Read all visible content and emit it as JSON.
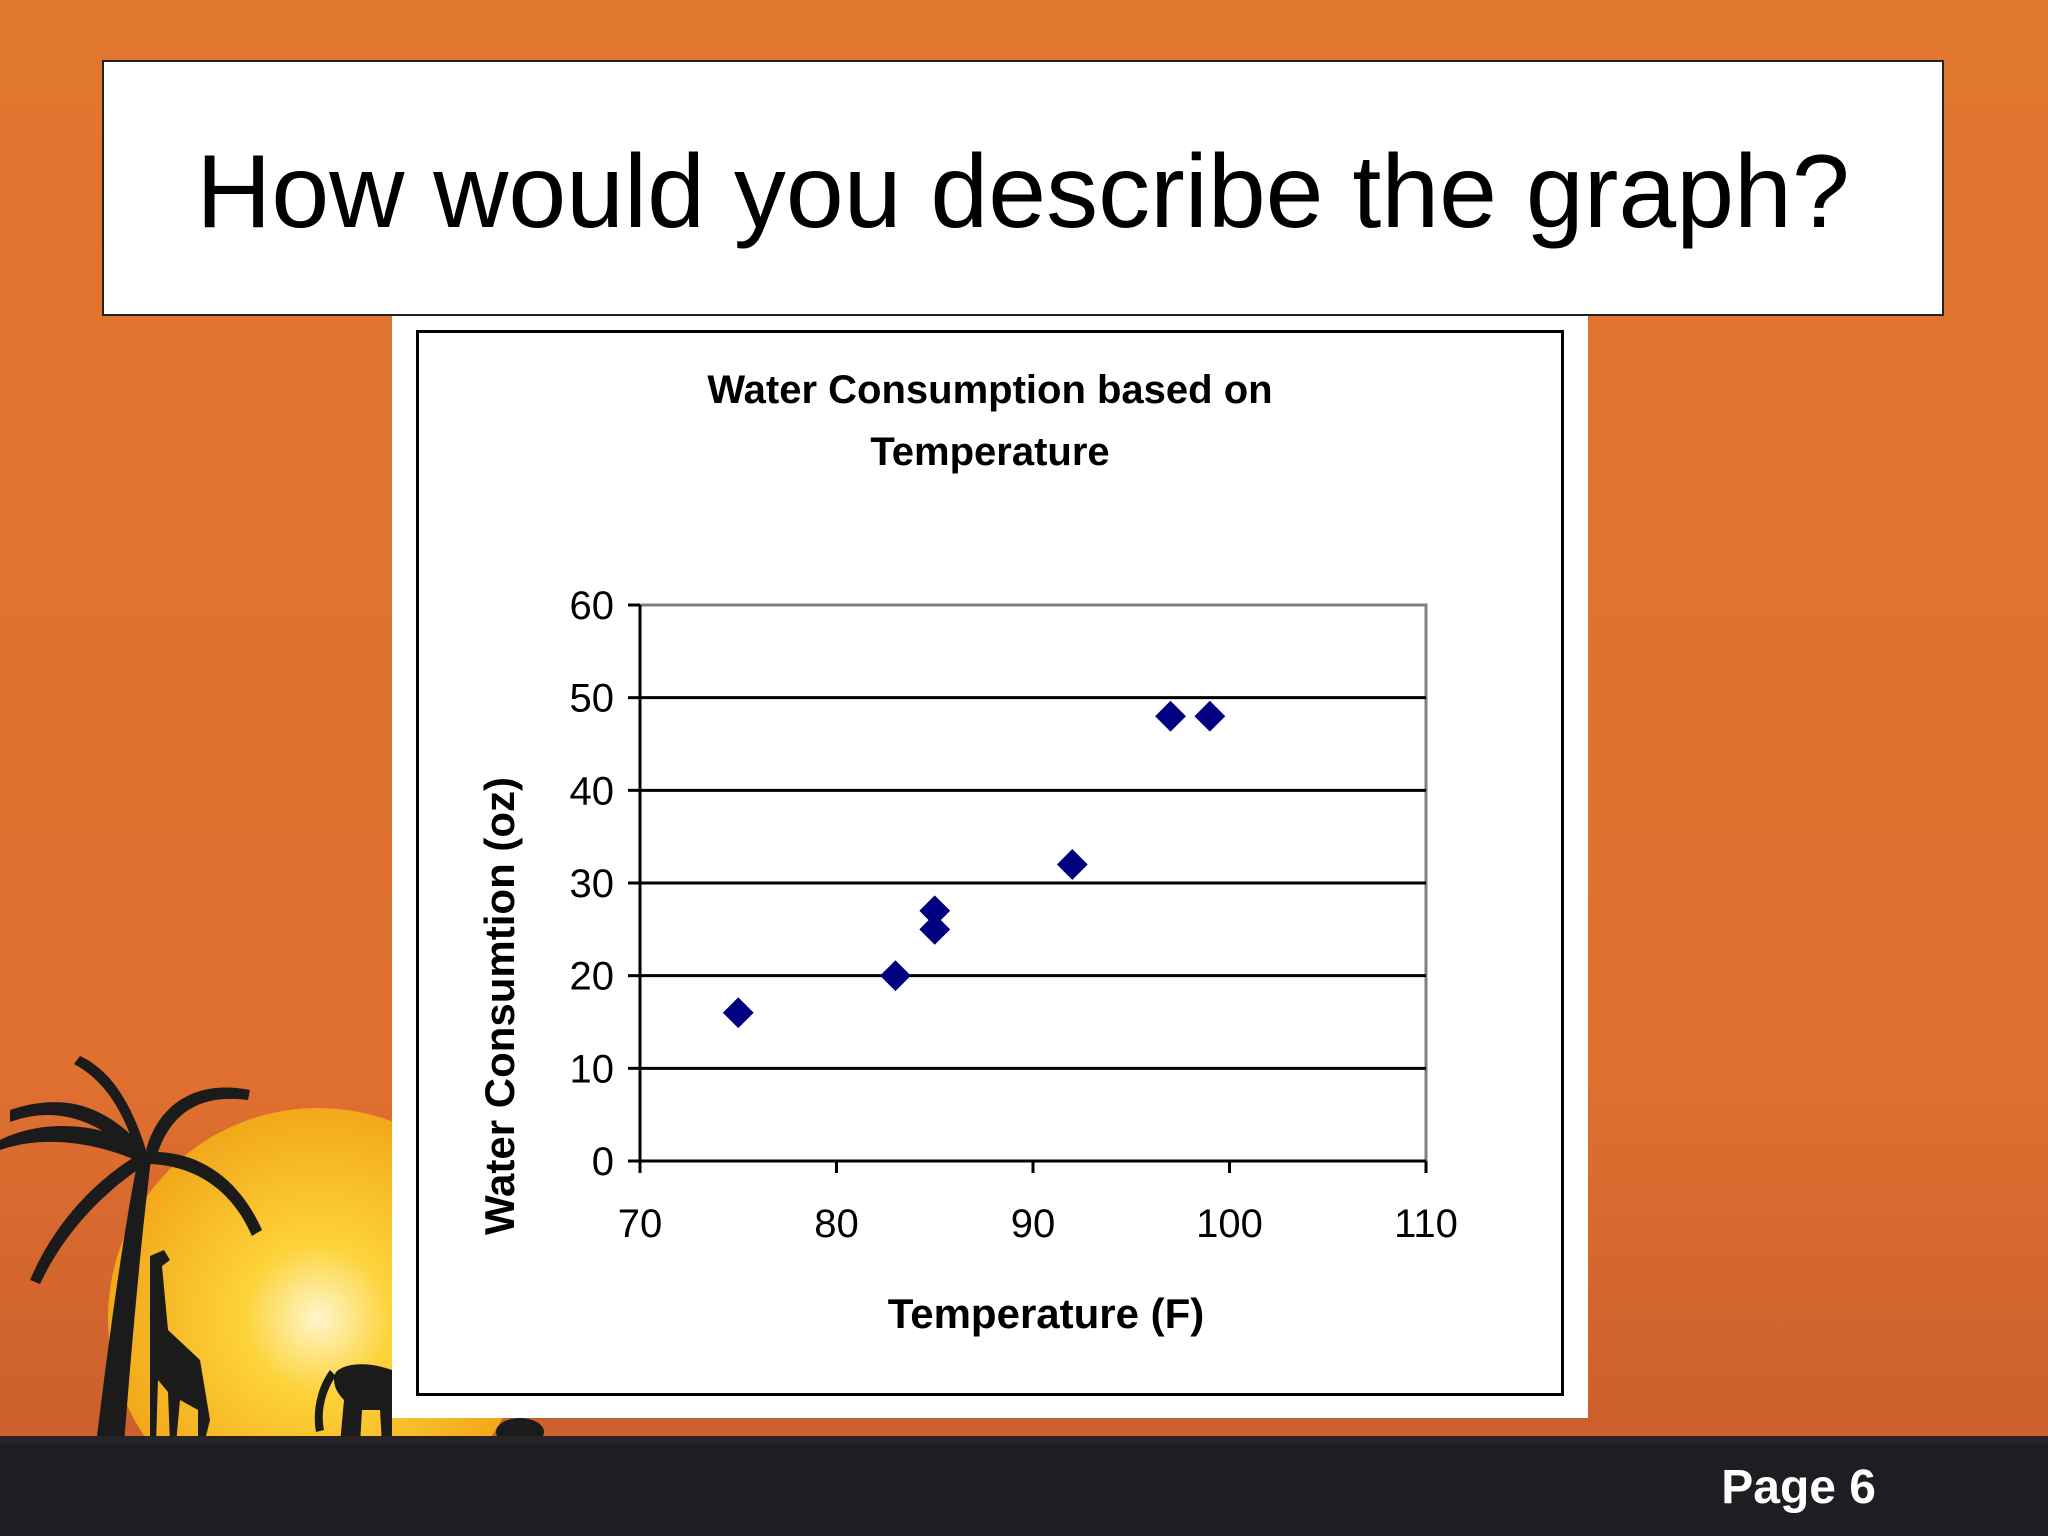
{
  "slide": {
    "title": "How would you describe the graph?",
    "page_label": "Page 6",
    "colors": {
      "background_top": "#e1762f",
      "background_bottom": "#c75a28",
      "sun": "#f8c316",
      "silhouette": "#1b1b1b",
      "marker": "#000080"
    }
  },
  "chart_data": {
    "type": "scatter",
    "title_lines": [
      "Water Consumption based on",
      "Temperature"
    ],
    "xlabel": "Temperature (F)",
    "ylabel": "Water Consumtion (oz)",
    "xlim": [
      70,
      110
    ],
    "ylim": [
      0,
      60
    ],
    "x_ticks": [
      70,
      80,
      90,
      100,
      110
    ],
    "y_ticks": [
      0,
      10,
      20,
      30,
      40,
      50,
      60
    ],
    "grid": "horizontal",
    "legend": "none",
    "points": [
      {
        "x": 75,
        "y": 16
      },
      {
        "x": 83,
        "y": 20
      },
      {
        "x": 85,
        "y": 25
      },
      {
        "x": 85,
        "y": 27
      },
      {
        "x": 92,
        "y": 32
      },
      {
        "x": 97,
        "y": 48
      },
      {
        "x": 99,
        "y": 48
      }
    ]
  }
}
